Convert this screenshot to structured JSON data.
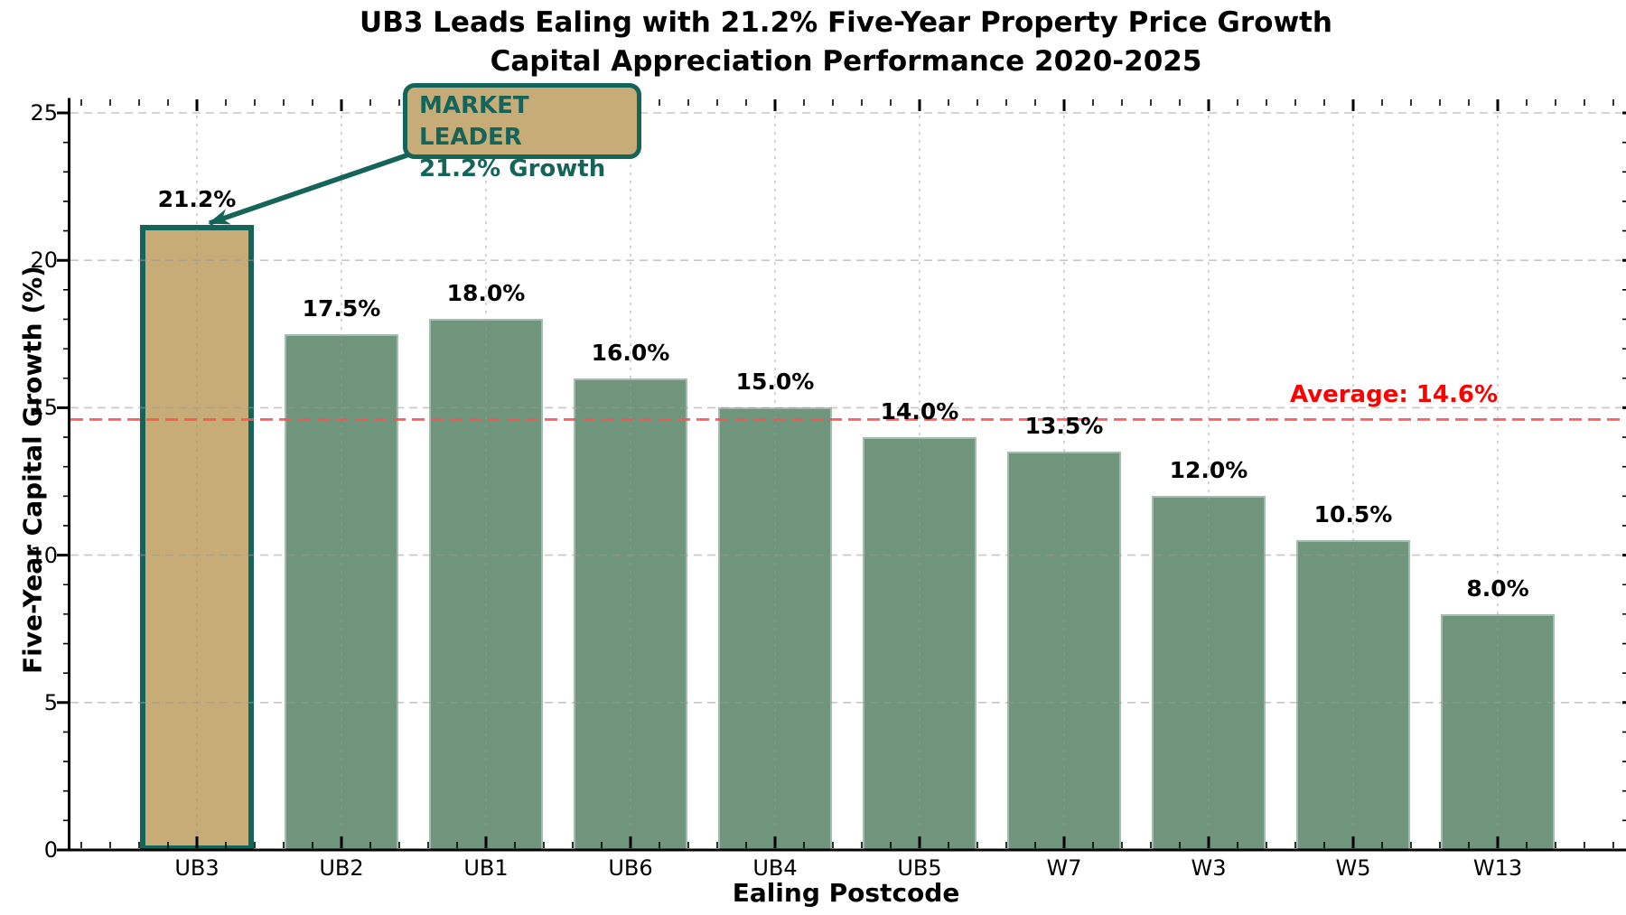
{
  "chart_data": {
    "type": "bar",
    "title_line1": "UB3 Leads Ealing with 21.2% Five-Year Property Price Growth",
    "title_line2": "Capital Appreciation Performance 2020-2025",
    "xlabel": "Ealing Postcode",
    "ylabel": "Five-Year Capital Growth (%)",
    "categories": [
      "UB3",
      "UB2",
      "UB1",
      "UB6",
      "UB4",
      "UB5",
      "W7",
      "W3",
      "W5",
      "W13"
    ],
    "values": [
      21.2,
      17.5,
      18.0,
      16.0,
      15.0,
      14.0,
      13.5,
      12.0,
      10.5,
      8.0
    ],
    "bar_labels": [
      "21.2%",
      "17.5%",
      "18.0%",
      "16.0%",
      "15.0%",
      "14.0%",
      "13.5%",
      "12.0%",
      "10.5%",
      "8.0%"
    ],
    "yticks": [
      0,
      5,
      10,
      15,
      20,
      25
    ],
    "ylim": [
      0,
      25.5
    ],
    "grid": true,
    "legend": "none",
    "average_line": {
      "value": 14.6,
      "label": "Average: 14.6%"
    },
    "annotation": {
      "line1": "MARKET LEADER",
      "line2": "21.2% Growth",
      "target_category": "UB3"
    },
    "highlight_category": "UB3",
    "colors": {
      "bar": "#6f957c",
      "highlight_fill": "#c8ac78",
      "highlight_edge": "#156459",
      "annotation_bg": "#c8ac78",
      "annotation_text": "#156459",
      "arrow": "#156459",
      "average_line": "#ff5252",
      "average_label": "#ff0000",
      "grid": "#999999",
      "axis": "#000000"
    }
  }
}
